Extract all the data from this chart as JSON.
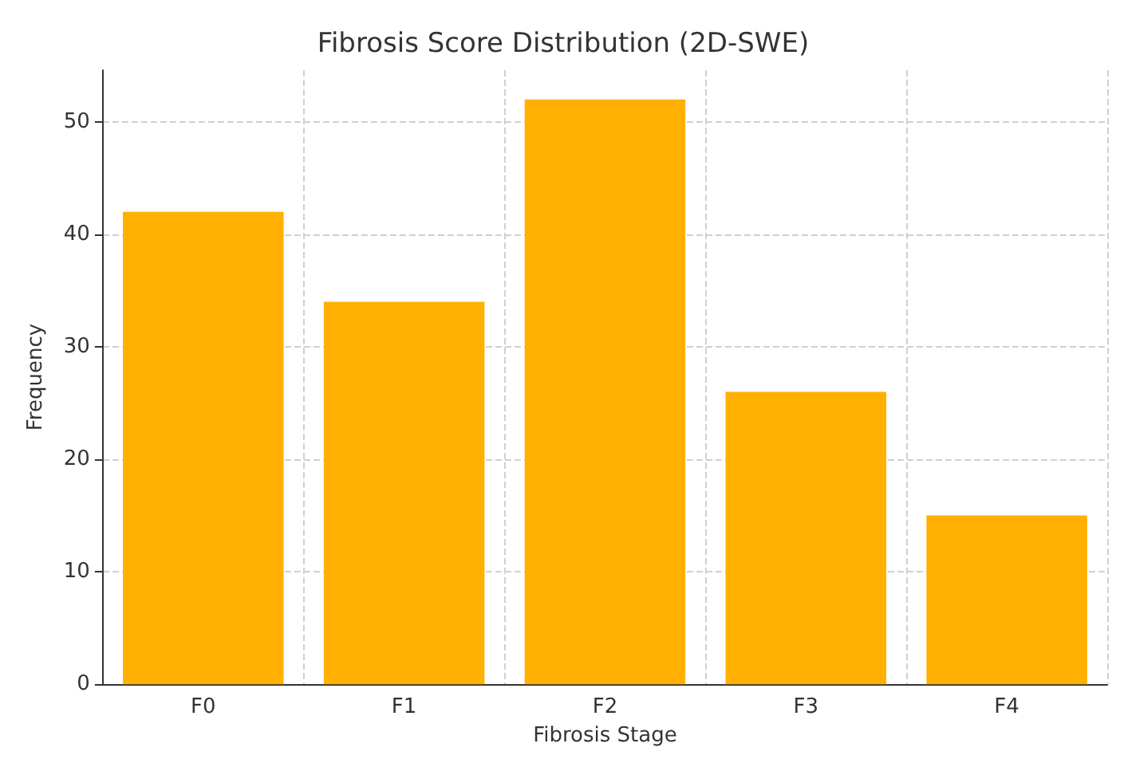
{
  "chart_data": {
    "type": "bar",
    "title": "Fibrosis Score Distribution (2D-SWE)",
    "xlabel": "Fibrosis Stage",
    "ylabel": "Frequency",
    "categories": [
      "F0",
      "F1",
      "F2",
      "F3",
      "F4"
    ],
    "values": [
      42,
      34,
      52,
      26,
      15
    ],
    "color": "#ffb000",
    "ylim": [
      0,
      54.6
    ],
    "yticks": [
      0,
      10,
      20,
      30,
      40,
      50
    ],
    "grid": true
  }
}
